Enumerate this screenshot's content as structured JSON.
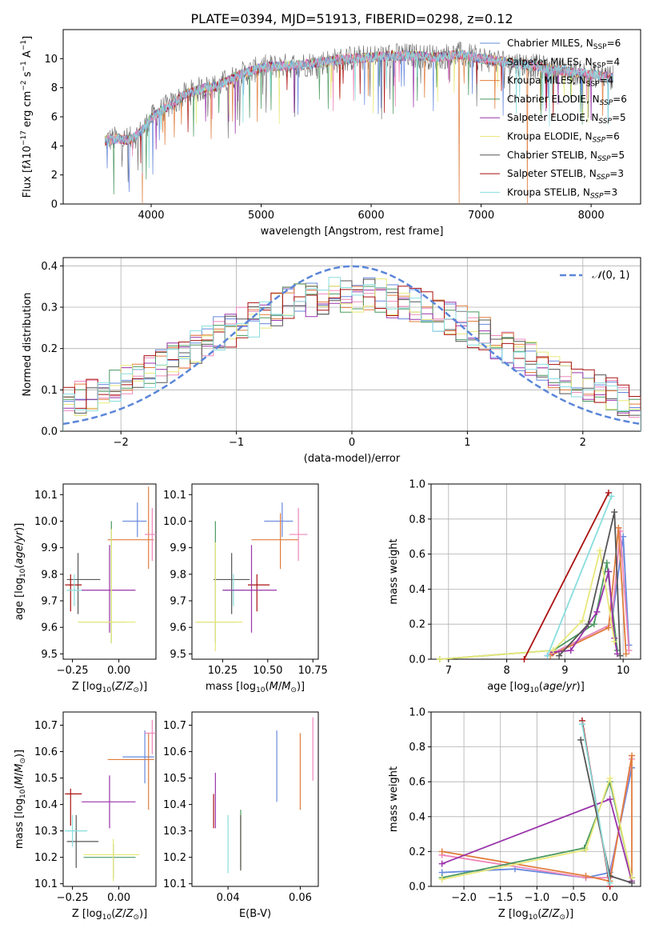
{
  "figure_title": "PLATE=0394, MJD=51913, FIBERID=0298, z=0.12",
  "colors": {
    "chabrier_miles": "#6688dd",
    "salpeter_miles": "#ee88bb",
    "kroupa_miles": "#e07d3c",
    "chabrier_elodie": "#4a9960",
    "salpeter_elodie": "#9933aa",
    "kroupa_elodie": "#e8e87a",
    "chabrier_stelib": "#555555",
    "salpeter_stelib": "#aa1111",
    "kroupa_stelib": "#88dddd",
    "gaussian": "#5b86d9",
    "grid": "#b0b0b0"
  },
  "chart_data": [
    {
      "type": "line",
      "panel": "spectrum",
      "title": "PLATE=0394, MJD=51913, FIBERID=0298, z=0.12",
      "xlabel": "wavelength [Angstrom, rest frame]",
      "ylabel": "Flux [f_λ 10^-17 erg cm^-2 s^-1 A^-1]",
      "xlim": [
        3200,
        8450
      ],
      "ylim": [
        0,
        12
      ],
      "xticks": [
        4000,
        5000,
        6000,
        7000,
        8000
      ],
      "yticks": [
        0,
        2,
        4,
        6,
        8,
        10
      ],
      "grid": false,
      "legend_position": "right",
      "series": [
        {
          "name": "Chabrier MILES, N_SSP=6",
          "name_html": "Chabrier MILES, N<tspan font-size='8' dy='3'>SSP</tspan><tspan dy='-3'>=6</tspan>"
        },
        {
          "name": "Salpeter MILES, N_SSP=4"
        },
        {
          "name": "Kroupa MILES, N_SSP=4"
        },
        {
          "name": "Chabrier ELODIE, N_SSP=6"
        },
        {
          "name": "Salpeter ELODIE, N_SSP=5"
        },
        {
          "name": "Kroupa ELODIE, N_SSP=6"
        },
        {
          "name": "Chabrier STELIB, N_SSP=5"
        },
        {
          "name": "Salpeter STELIB, N_SSP=3"
        },
        {
          "name": "Kroupa STELIB, N_SSP=3"
        }
      ],
      "envelope": {
        "x": [
          3600,
          3700,
          3800,
          3900,
          4000,
          4100,
          4200,
          4300,
          4400,
          4500,
          4600,
          4700,
          4800,
          4900,
          5000,
          5200,
          5400,
          5600,
          5800,
          6000,
          6200,
          6400,
          6600,
          6800,
          7000,
          7200,
          7400,
          7600,
          7800,
          8000,
          8200
        ],
        "y": [
          4.4,
          4.5,
          4.4,
          4.9,
          5.9,
          6.5,
          6.9,
          7.5,
          7.8,
          8.0,
          8.1,
          8.5,
          8.9,
          9.1,
          9.4,
          9.5,
          9.6,
          9.8,
          10.0,
          10.1,
          10.2,
          10.2,
          10.1,
          10.3,
          10.0,
          9.8,
          9.6,
          9.3,
          9.1,
          8.9,
          8.7
        ]
      }
    },
    {
      "type": "histogram",
      "panel": "residuals",
      "xlabel": "(data-model)/error",
      "ylabel": "Normed distribution",
      "xlim": [
        -2.5,
        2.5
      ],
      "ylim": [
        0,
        0.42
      ],
      "xticks": [
        -2,
        -1,
        0,
        1,
        2
      ],
      "yticks": [
        0.0,
        0.1,
        0.2,
        0.3,
        0.4
      ],
      "grid": true,
      "legend": "N(0,1)",
      "legend_position": "top-right",
      "bins": [
        -2.5,
        2.5,
        50
      ],
      "reference_curve": {
        "name": "N(0,1)",
        "mean": 0,
        "sigma": 1
      }
    },
    {
      "type": "scatter",
      "panel": "age-vs-Z",
      "xlabel": "Z [log10(Z/Z_sun)]",
      "ylabel": "age [log10(age/yr)]",
      "xlim": [
        -0.3,
        0.2
      ],
      "ylim": [
        9.48,
        10.14
      ],
      "xticks": [
        -0.25,
        0.0
      ],
      "yticks": [
        9.5,
        9.6,
        9.7,
        9.8,
        9.9,
        10.0,
        10.1
      ],
      "points": [
        {
          "x": 0.1,
          "y": 10.0,
          "xerr": [
            0.08,
            0.05
          ],
          "yerr": [
            0.06,
            0.07
          ],
          "color": "chabrier_miles"
        },
        {
          "x": 0.16,
          "y": 9.93,
          "xerr": [
            0.22,
            0.03
          ],
          "yerr": [
            0.11,
            0.2
          ],
          "color": "kroupa_miles"
        },
        {
          "x": 0.18,
          "y": 9.95,
          "xerr": [
            0.04,
            0.02
          ],
          "yerr": [
            0.1,
            0.1
          ],
          "color": "salpeter_miles"
        },
        {
          "x": -0.22,
          "y": 9.78,
          "xerr": [
            0.06,
            0.12
          ],
          "yerr": [
            0.13,
            0.1
          ],
          "color": "chabrier_stelib"
        },
        {
          "x": -0.26,
          "y": 9.76,
          "xerr": [
            0.03,
            0.06
          ],
          "yerr": [
            0.1,
            0.04
          ],
          "color": "salpeter_stelib"
        },
        {
          "x": -0.24,
          "y": 9.74,
          "xerr": [
            0.04,
            0.05
          ],
          "yerr": [
            0.06,
            0.06
          ],
          "color": "kroupa_stelib"
        },
        {
          "x": -0.05,
          "y": 9.74,
          "xerr": [
            0.15,
            0.14
          ],
          "yerr": [
            0.16,
            0.17
          ],
          "color": "salpeter_elodie"
        },
        {
          "x": -0.04,
          "y": 9.62,
          "xerr": [
            0.18,
            0.08
          ],
          "yerr": [
            0.08,
            0.38
          ],
          "color": "chabrier_elodie"
        },
        {
          "x": -0.04,
          "y": 9.62,
          "xerr": [
            0.18,
            0.13
          ],
          "yerr": [
            0.08,
            0.35
          ],
          "color": "kroupa_elodie"
        }
      ]
    },
    {
      "type": "scatter",
      "panel": "age-vs-mass",
      "xlabel": "mass [log10(M/M_sun)]",
      "ylabel": "",
      "xlim": [
        10.08,
        10.78
      ],
      "ylim": [
        9.48,
        10.14
      ],
      "xticks": [
        10.25,
        10.5,
        10.75
      ],
      "yticks": [
        9.5,
        9.6,
        9.7,
        9.8,
        9.9,
        10.0,
        10.1
      ],
      "points": [
        {
          "x": 10.58,
          "y": 10.0,
          "xerr": [
            0.1,
            0.06
          ],
          "yerr": [
            0.06,
            0.07
          ],
          "color": "chabrier_miles"
        },
        {
          "x": 10.57,
          "y": 9.93,
          "xerr": [
            0.16,
            0.1
          ],
          "yerr": [
            0.11,
            0.1
          ],
          "color": "kroupa_miles"
        },
        {
          "x": 10.67,
          "y": 9.95,
          "xerr": [
            0.05,
            0.05
          ],
          "yerr": [
            0.1,
            0.1
          ],
          "color": "salpeter_miles"
        },
        {
          "x": 10.3,
          "y": 9.78,
          "xerr": [
            0.1,
            0.1
          ],
          "yerr": [
            0.13,
            0.1
          ],
          "color": "chabrier_stelib"
        },
        {
          "x": 10.44,
          "y": 9.76,
          "xerr": [
            0.05,
            0.07
          ],
          "yerr": [
            0.1,
            0.04
          ],
          "color": "salpeter_stelib"
        },
        {
          "x": 10.31,
          "y": 9.74,
          "xerr": [
            0.06,
            0.06
          ],
          "yerr": [
            0.06,
            0.06
          ],
          "color": "kroupa_stelib"
        },
        {
          "x": 10.41,
          "y": 9.74,
          "xerr": [
            0.16,
            0.14
          ],
          "yerr": [
            0.16,
            0.17
          ],
          "color": "salpeter_elodie"
        },
        {
          "x": 10.21,
          "y": 9.62,
          "xerr": [
            0.11,
            0.12
          ],
          "yerr": [
            0.08,
            0.38
          ],
          "color": "chabrier_elodie"
        },
        {
          "x": 10.21,
          "y": 9.62,
          "xerr": [
            0.11,
            0.15
          ],
          "yerr": [
            0.11,
            0.3
          ],
          "color": "kroupa_elodie"
        }
      ]
    },
    {
      "type": "line",
      "panel": "weight-vs-age",
      "xlabel": "age [log10(age/yr)]",
      "ylabel": "mass weight",
      "xlim": [
        6.7,
        10.3
      ],
      "ylim": [
        0,
        1
      ],
      "xticks": [
        7,
        8,
        9,
        10
      ],
      "yticks": [
        0.0,
        0.2,
        0.4,
        0.6,
        0.8,
        1.0
      ],
      "grid": true,
      "series": [
        {
          "color": "chabrier_miles",
          "x": [
            8.7,
            9.8,
            10.0,
            10.1
          ],
          "y": [
            0.02,
            0.2,
            0.7,
            0.08
          ]
        },
        {
          "color": "salpeter_miles",
          "x": [
            8.7,
            9.8,
            9.95,
            10.1
          ],
          "y": [
            0.02,
            0.2,
            0.73,
            0.05
          ]
        },
        {
          "color": "kroupa_miles",
          "x": [
            8.75,
            9.75,
            9.92,
            10.05
          ],
          "y": [
            0.02,
            0.18,
            0.75,
            0.03
          ]
        },
        {
          "color": "chabrier_elodie",
          "x": [
            6.85,
            8.8,
            9.5,
            9.72,
            9.9
          ],
          "y": [
            0.0,
            0.05,
            0.2,
            0.55,
            0.05
          ]
        },
        {
          "color": "salpeter_elodie",
          "x": [
            8.8,
            9.1,
            9.55,
            9.75,
            9.85,
            9.9
          ],
          "y": [
            0.04,
            0.05,
            0.27,
            0.5,
            0.12,
            0.03
          ]
        },
        {
          "color": "kroupa_elodie",
          "x": [
            6.85,
            8.8,
            9.3,
            9.6,
            9.85
          ],
          "y": [
            0.0,
            0.05,
            0.22,
            0.62,
            0.1
          ]
        },
        {
          "color": "chabrier_stelib",
          "x": [
            8.9,
            9.4,
            9.85,
            9.95
          ],
          "y": [
            0.02,
            0.2,
            0.84,
            0.02
          ]
        },
        {
          "color": "salpeter_stelib",
          "x": [
            8.3,
            9.75
          ],
          "y": [
            0.0,
            0.95
          ]
        },
        {
          "color": "kroupa_stelib",
          "x": [
            8.7,
            9.8
          ],
          "y": [
            0.02,
            0.93
          ]
        }
      ]
    },
    {
      "type": "scatter",
      "panel": "mass-vs-Z",
      "xlabel": "Z [log10(Z/Z_sun)]",
      "ylabel": "mass [log10(M/M_sun)]",
      "xlim": [
        -0.3,
        0.2
      ],
      "ylim": [
        10.09,
        10.75
      ],
      "xticks": [
        -0.25,
        0.0
      ],
      "yticks": [
        10.1,
        10.2,
        10.3,
        10.4,
        10.5,
        10.6,
        10.7
      ],
      "points": [
        {
          "x": 0.14,
          "y": 10.58,
          "xerr": [
            0.12,
            0.05
          ],
          "yerr": [
            0.1,
            0.1
          ],
          "color": "chabrier_miles"
        },
        {
          "x": 0.16,
          "y": 10.57,
          "xerr": [
            0.22,
            0.03
          ],
          "yerr": [
            0.19,
            0.1
          ],
          "color": "kroupa_miles"
        },
        {
          "x": 0.18,
          "y": 10.67,
          "xerr": [
            0.04,
            0.02
          ],
          "yerr": [
            0.08,
            0.05
          ],
          "color": "salpeter_miles"
        },
        {
          "x": -0.23,
          "y": 10.26,
          "xerr": [
            0.05,
            0.12
          ],
          "yerr": [
            0.1,
            0.1
          ],
          "color": "chabrier_stelib"
        },
        {
          "x": -0.26,
          "y": 10.44,
          "xerr": [
            0.03,
            0.06
          ],
          "yerr": [
            0.12,
            0.02
          ],
          "color": "salpeter_stelib"
        },
        {
          "x": -0.25,
          "y": 10.3,
          "xerr": [
            0.04,
            0.08
          ],
          "yerr": [
            0.06,
            0.06
          ],
          "color": "kroupa_stelib"
        },
        {
          "x": -0.05,
          "y": 10.41,
          "xerr": [
            0.15,
            0.14
          ],
          "yerr": [
            0.1,
            0.1
          ],
          "color": "salpeter_elodie"
        },
        {
          "x": -0.03,
          "y": 10.2,
          "xerr": [
            0.16,
            0.12
          ],
          "yerr": [
            0.08,
            0.05
          ],
          "color": "chabrier_elodie"
        },
        {
          "x": -0.03,
          "y": 10.21,
          "xerr": [
            0.16,
            0.14
          ],
          "yerr": [
            0.1,
            0.06
          ],
          "color": "kroupa_elodie"
        }
      ]
    },
    {
      "type": "scatter",
      "panel": "mass-vs-EBV",
      "xlabel": "E(B-V)",
      "ylabel": "",
      "xlim": [
        0.03,
        0.065
      ],
      "ylim": [
        10.09,
        10.75
      ],
      "xticks": [
        0.04,
        0.06
      ],
      "yticks": [
        10.1,
        10.2,
        10.3,
        10.4,
        10.5,
        10.6,
        10.7
      ],
      "points": [
        {
          "x": 0.0535,
          "y": 10.54,
          "yerr": [
            0.13,
            0.14
          ],
          "color": "chabrier_miles"
        },
        {
          "x": 0.06,
          "y": 10.53,
          "yerr": [
            0.15,
            0.14
          ],
          "color": "kroupa_miles"
        },
        {
          "x": 0.0635,
          "y": 10.6,
          "yerr": [
            0.11,
            0.13
          ],
          "color": "salpeter_miles"
        },
        {
          "x": 0.0365,
          "y": 10.42,
          "yerr": [
            0.11,
            0.1
          ],
          "color": "salpeter_elodie"
        },
        {
          "x": 0.036,
          "y": 10.38,
          "yerr": [
            0.07,
            0.06
          ],
          "color": "salpeter_stelib"
        },
        {
          "x": 0.04,
          "y": 10.26,
          "yerr": [
            0.12,
            0.1
          ],
          "color": "kroupa_stelib"
        },
        {
          "x": 0.0435,
          "y": 10.27,
          "yerr": [
            0.11,
            0.11
          ],
          "color": "chabrier_elodie"
        },
        {
          "x": 0.0435,
          "y": 10.26,
          "yerr": [
            0.11,
            0.1
          ],
          "color": "kroupa_elodie"
        },
        {
          "x": 0.0435,
          "y": 10.24,
          "yerr": [
            0.09,
            0.12
          ],
          "color": "chabrier_stelib"
        }
      ]
    },
    {
      "type": "line",
      "panel": "weight-vs-Z",
      "xlabel": "Z [log10(Z/Z_sun)]",
      "ylabel": "mass weight",
      "xlim": [
        -2.45,
        0.42
      ],
      "ylim": [
        0,
        1
      ],
      "xticks": [
        -2.0,
        -1.5,
        -1.0,
        -0.5,
        0.0
      ],
      "yticks": [
        0.0,
        0.2,
        0.4,
        0.6,
        0.8,
        1.0
      ],
      "grid": true,
      "series": [
        {
          "color": "chabrier_miles",
          "x": [
            -2.3,
            -1.3,
            -0.33,
            0.0,
            0.3
          ],
          "y": [
            0.08,
            0.1,
            0.05,
            0.08,
            0.68
          ]
        },
        {
          "color": "salpeter_miles",
          "x": [
            -2.3,
            -0.33,
            0.0,
            0.3
          ],
          "y": [
            0.18,
            0.05,
            0.05,
            0.73
          ]
        },
        {
          "color": "kroupa_miles",
          "x": [
            -2.3,
            -0.33,
            0.0,
            0.3,
            0.3
          ],
          "y": [
            0.2,
            0.06,
            0.03,
            0.75,
            0.05
          ]
        },
        {
          "color": "chabrier_elodie",
          "x": [
            -2.3,
            -0.35,
            0.0,
            0.3
          ],
          "y": [
            0.05,
            0.22,
            0.6,
            0.05
          ]
        },
        {
          "color": "salpeter_elodie",
          "x": [
            -2.3,
            0.0,
            0.3
          ],
          "y": [
            0.13,
            0.5,
            0.03
          ]
        },
        {
          "color": "kroupa_elodie",
          "x": [
            -2.3,
            -0.33,
            0.0,
            0.3
          ],
          "y": [
            0.04,
            0.21,
            0.62,
            0.05
          ]
        },
        {
          "color": "chabrier_stelib",
          "x": [
            -0.4,
            0.0,
            0.3
          ],
          "y": [
            0.84,
            0.06,
            0.02
          ]
        },
        {
          "color": "salpeter_stelib",
          "x": [
            -0.38,
            0.0
          ],
          "y": [
            0.95,
            0.0
          ]
        },
        {
          "color": "kroupa_stelib",
          "x": [
            -0.38,
            0.0
          ],
          "y": [
            0.93,
            0.02
          ]
        }
      ]
    }
  ]
}
